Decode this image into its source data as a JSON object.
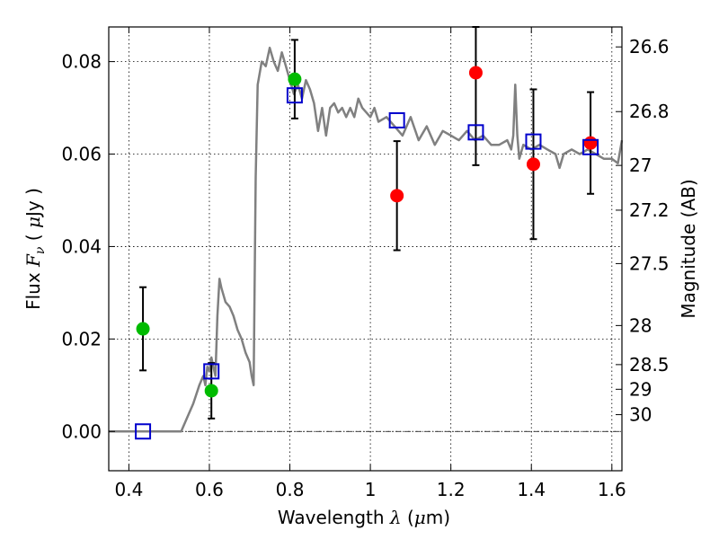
{
  "chart_data": {
    "type": "scatter",
    "xlabel": "Wavelength",
    "xlabel_symbol": "λ",
    "xlabel_unit_prefix": "(",
    "xlabel_unit_mu": "μ",
    "xlabel_unit_rest": "m)",
    "ylabel": "Flux",
    "ylabel_symbol": "F",
    "ylabel_sub": "ν",
    "ylabel_paren_open": "(",
    "ylabel_unit_mu": "μ",
    "ylabel_unit_rest": "Jy )",
    "y2label": "Magnitude (AB)",
    "xlim": [
      0.35,
      1.625
    ],
    "ylim": [
      -0.0085,
      0.0875
    ],
    "grid": true,
    "x_ticks": [
      {
        "value": 0.4,
        "label": "0.4"
      },
      {
        "value": 0.6,
        "label": "0.6"
      },
      {
        "value": 0.8,
        "label": "0.8"
      },
      {
        "value": 1.0,
        "label": "1"
      },
      {
        "value": 1.2,
        "label": "1.2"
      },
      {
        "value": 1.4,
        "label": "1.4"
      },
      {
        "value": 1.6,
        "label": "1.6"
      }
    ],
    "y_ticks": [
      {
        "value": 0.0,
        "label": "0.00"
      },
      {
        "value": 0.02,
        "label": "0.02"
      },
      {
        "value": 0.04,
        "label": "0.04"
      },
      {
        "value": 0.06,
        "label": "0.06"
      },
      {
        "value": 0.08,
        "label": "0.08"
      }
    ],
    "mag_ticks": [
      {
        "mag": 26.6,
        "label": "26.6"
      },
      {
        "mag": 26.8,
        "label": "26.8"
      },
      {
        "mag": 27.0,
        "label": "27"
      },
      {
        "mag": 27.2,
        "label": "27.2"
      },
      {
        "mag": 27.5,
        "label": "27.5"
      },
      {
        "mag": 28.0,
        "label": "28"
      },
      {
        "mag": 28.5,
        "label": "28.5"
      },
      {
        "mag": 29.0,
        "label": "29"
      },
      {
        "mag": 30.0,
        "label": "30"
      }
    ],
    "zero_line": 0.0,
    "series": [
      {
        "name": "template spectrum",
        "kind": "line",
        "color": "#808080",
        "x": [
          0.35,
          0.53,
          0.545,
          0.56,
          0.575,
          0.585,
          0.59,
          0.595,
          0.6,
          0.605,
          0.61,
          0.615,
          0.62,
          0.625,
          0.63,
          0.64,
          0.65,
          0.66,
          0.67,
          0.68,
          0.69,
          0.7,
          0.705,
          0.71,
          0.715,
          0.72,
          0.73,
          0.74,
          0.75,
          0.76,
          0.77,
          0.78,
          0.79,
          0.8,
          0.81,
          0.82,
          0.83,
          0.84,
          0.85,
          0.86,
          0.87,
          0.88,
          0.89,
          0.9,
          0.91,
          0.92,
          0.93,
          0.94,
          0.95,
          0.96,
          0.97,
          0.98,
          0.99,
          1.0,
          1.01,
          1.02,
          1.04,
          1.06,
          1.08,
          1.1,
          1.12,
          1.14,
          1.16,
          1.18,
          1.2,
          1.22,
          1.24,
          1.26,
          1.28,
          1.3,
          1.32,
          1.34,
          1.35,
          1.355,
          1.36,
          1.365,
          1.37,
          1.38,
          1.4,
          1.42,
          1.44,
          1.46,
          1.47,
          1.48,
          1.5,
          1.52,
          1.54,
          1.56,
          1.58,
          1.6,
          1.615,
          1.625
        ],
        "y": [
          0.0,
          0.0,
          0.003,
          0.006,
          0.01,
          0.012,
          0.01,
          0.014,
          0.013,
          0.016,
          0.014,
          0.012,
          0.025,
          0.033,
          0.031,
          0.028,
          0.027,
          0.025,
          0.022,
          0.02,
          0.017,
          0.015,
          0.012,
          0.01,
          0.055,
          0.075,
          0.08,
          0.079,
          0.083,
          0.08,
          0.078,
          0.082,
          0.079,
          0.076,
          0.073,
          0.075,
          0.072,
          0.076,
          0.074,
          0.071,
          0.065,
          0.07,
          0.064,
          0.07,
          0.071,
          0.069,
          0.07,
          0.068,
          0.07,
          0.068,
          0.072,
          0.07,
          0.069,
          0.068,
          0.07,
          0.067,
          0.068,
          0.066,
          0.064,
          0.068,
          0.063,
          0.066,
          0.062,
          0.065,
          0.064,
          0.063,
          0.065,
          0.063,
          0.064,
          0.062,
          0.062,
          0.063,
          0.061,
          0.064,
          0.075,
          0.064,
          0.059,
          0.062,
          0.061,
          0.062,
          0.061,
          0.06,
          0.057,
          0.06,
          0.061,
          0.06,
          0.061,
          0.06,
          0.059,
          0.059,
          0.058,
          0.063
        ]
      },
      {
        "name": "green points",
        "kind": "points",
        "color": "#00bb00",
        "x": [
          0.435,
          0.605,
          0.812
        ],
        "y": [
          0.0222,
          0.0088,
          0.0762
        ],
        "yerr": [
          0.009,
          0.006,
          0.0085
        ]
      },
      {
        "name": "red points",
        "kind": "points",
        "color": "#ff0000",
        "x": [
          1.066,
          1.262,
          1.405,
          1.547
        ],
        "y": [
          0.051,
          0.0776,
          0.0578,
          0.0624
        ],
        "yerr": [
          0.0118,
          0.02,
          0.0162,
          0.011
        ]
      },
      {
        "name": "model photometry",
        "kind": "squares",
        "color": "#0000cc",
        "x": [
          0.435,
          0.605,
          0.812,
          1.066,
          1.262,
          1.405,
          1.547
        ],
        "y": [
          0.0,
          0.013,
          0.0727,
          0.0673,
          0.0647,
          0.0627,
          0.0615
        ]
      }
    ]
  }
}
